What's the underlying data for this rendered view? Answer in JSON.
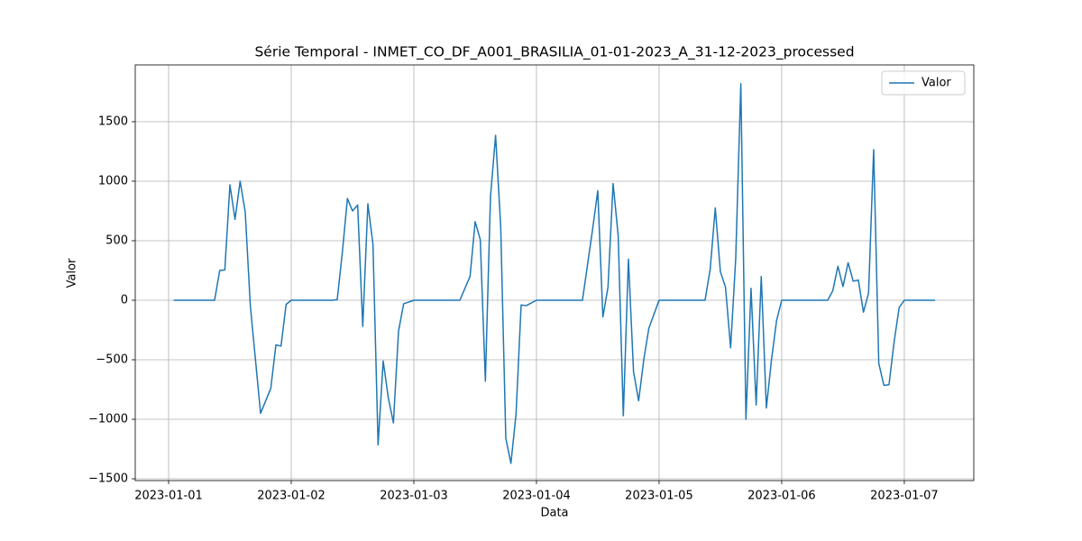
{
  "chart_data": {
    "type": "line",
    "title": "Série Temporal - INMET_CO_DF_A001_BRASILIA_01-01-2023_A_31-12-2023_processed",
    "x_label": "Data",
    "y_label": "Valor",
    "x": [
      1,
      9,
      10,
      11,
      12,
      13,
      14,
      15,
      16,
      17,
      18,
      20,
      21,
      22,
      23,
      24,
      32,
      33,
      34,
      35,
      36,
      37,
      38,
      39,
      40,
      41,
      42,
      43,
      44,
      45,
      46,
      48,
      57,
      59,
      60,
      61,
      62,
      63,
      64,
      65,
      66,
      67,
      68,
      69,
      70,
      72,
      81,
      82,
      83,
      84,
      85,
      86,
      87,
      88,
      89,
      90,
      91,
      92,
      93,
      94,
      96,
      105,
      106,
      107,
      108,
      109,
      110,
      111,
      112,
      113,
      114,
      115,
      116,
      117,
      118,
      119,
      120,
      129,
      130,
      131,
      132,
      133,
      134,
      135,
      136,
      137,
      138,
      139,
      140,
      141,
      142,
      143,
      144,
      150
    ],
    "series": [
      {
        "name": "Valor",
        "color": "#1f77b4",
        "values": [
          0,
          0,
          250,
          255,
          970,
          680,
          1000,
          740,
          -50,
          -500,
          -950,
          -740,
          -375,
          -385,
          -35,
          0,
          0,
          5,
          400,
          855,
          750,
          800,
          -220,
          810,
          470,
          -1215,
          -510,
          -820,
          -1030,
          -260,
          -30,
          0,
          0,
          200,
          660,
          510,
          -680,
          870,
          1385,
          620,
          -1160,
          -1370,
          -960,
          -40,
          -45,
          0,
          0,
          300,
          600,
          920,
          -140,
          110,
          980,
          540,
          -970,
          345,
          -600,
          -845,
          -500,
          -235,
          0,
          0,
          260,
          775,
          240,
          110,
          -400,
          350,
          1820,
          -1000,
          100,
          -880,
          200,
          -905,
          -500,
          -170,
          0,
          0,
          80,
          285,
          115,
          315,
          160,
          170,
          -100,
          60,
          1265,
          -530,
          -715,
          -710,
          -350,
          -60,
          0,
          0
        ]
      }
    ],
    "xlim": [
      -6.53,
      157.6
    ],
    "xticks": [
      {
        "value": 0,
        "label": "2023-01-01"
      },
      {
        "value": 24,
        "label": "2023-01-02"
      },
      {
        "value": 48,
        "label": "2023-01-03"
      },
      {
        "value": 72,
        "label": "2023-01-04"
      },
      {
        "value": 96,
        "label": "2023-01-05"
      },
      {
        "value": 120,
        "label": "2023-01-06"
      },
      {
        "value": 144,
        "label": "2023-01-07"
      }
    ],
    "ylim": [
      -1515,
      1977
    ],
    "yticks": [
      {
        "value": -1500,
        "label": "−1500"
      },
      {
        "value": -1000,
        "label": "−1000"
      },
      {
        "value": -500,
        "label": "−500"
      },
      0,
      500,
      1000,
      1500
    ],
    "grid": true,
    "legend": "upper right"
  }
}
